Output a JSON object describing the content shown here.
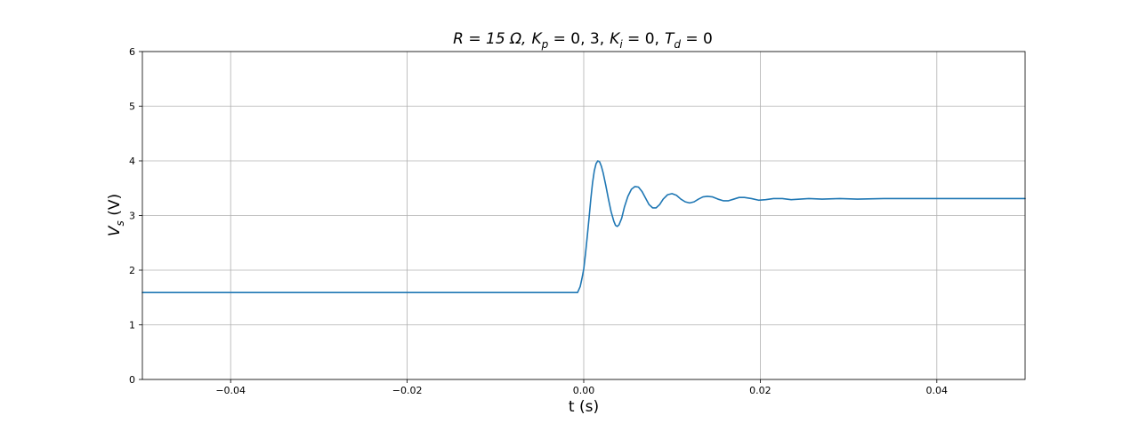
{
  "chart_data": {
    "type": "line",
    "title": "R = 15 Ω,  K_p = 0,3,  K_i = 0,  T_d = 0",
    "title_parts": {
      "r": "R = 15 Ω,",
      "kp_symbol": "K",
      "kp_sub": "p",
      "kp_value": " = 0, 3,",
      "ki_symbol": "K",
      "ki_sub": "i",
      "ki_value": " = 0,",
      "td_symbol": "T",
      "td_sub": "d",
      "td_value": " = 0"
    },
    "xlabel": "t (s)",
    "ylabel": "V_s (V)",
    "ylabel_parts": {
      "symbol": "V",
      "sub": "s",
      "unit": " (V)"
    },
    "xlim": [
      -0.05,
      0.05
    ],
    "ylim": [
      0,
      6
    ],
    "x_ticks": [
      -0.04,
      -0.02,
      0.0,
      0.02,
      0.04
    ],
    "x_tick_labels": [
      "−0.04",
      "−0.02",
      "0.00",
      "0.02",
      "0.04"
    ],
    "y_ticks": [
      0,
      1,
      2,
      3,
      4,
      5,
      6
    ],
    "y_tick_labels": [
      "0",
      "1",
      "2",
      "3",
      "4",
      "5",
      "6"
    ],
    "grid": true,
    "series": [
      {
        "color": "#1f77b4",
        "points": [
          [
            -0.05,
            1.59
          ],
          [
            -0.045,
            1.59
          ],
          [
            -0.04,
            1.59
          ],
          [
            -0.035,
            1.59
          ],
          [
            -0.03,
            1.59
          ],
          [
            -0.025,
            1.59
          ],
          [
            -0.02,
            1.59
          ],
          [
            -0.015,
            1.59
          ],
          [
            -0.01,
            1.59
          ],
          [
            -0.005,
            1.59
          ],
          [
            -0.0007,
            1.59
          ],
          [
            -0.0004,
            1.7
          ],
          [
            -0.0002,
            1.85
          ],
          [
            0.0,
            2.02
          ],
          [
            0.0002,
            2.3
          ],
          [
            0.0004,
            2.62
          ],
          [
            0.0006,
            2.95
          ],
          [
            0.0008,
            3.3
          ],
          [
            0.001,
            3.6
          ],
          [
            0.0012,
            3.82
          ],
          [
            0.0014,
            3.95
          ],
          [
            0.0016,
            4.0
          ],
          [
            0.0018,
            3.98
          ],
          [
            0.002,
            3.9
          ],
          [
            0.0022,
            3.78
          ],
          [
            0.0025,
            3.55
          ],
          [
            0.0028,
            3.3
          ],
          [
            0.0031,
            3.07
          ],
          [
            0.0034,
            2.9
          ],
          [
            0.0036,
            2.82
          ],
          [
            0.0038,
            2.8
          ],
          [
            0.004,
            2.83
          ],
          [
            0.0043,
            2.95
          ],
          [
            0.0046,
            3.15
          ],
          [
            0.005,
            3.35
          ],
          [
            0.0054,
            3.48
          ],
          [
            0.0058,
            3.53
          ],
          [
            0.0062,
            3.52
          ],
          [
            0.0066,
            3.44
          ],
          [
            0.007,
            3.32
          ],
          [
            0.0074,
            3.2
          ],
          [
            0.0078,
            3.14
          ],
          [
            0.0082,
            3.14
          ],
          [
            0.0086,
            3.2
          ],
          [
            0.009,
            3.3
          ],
          [
            0.0095,
            3.38
          ],
          [
            0.01,
            3.4
          ],
          [
            0.0105,
            3.37
          ],
          [
            0.011,
            3.3
          ],
          [
            0.0115,
            3.25
          ],
          [
            0.012,
            3.23
          ],
          [
            0.0125,
            3.25
          ],
          [
            0.013,
            3.3
          ],
          [
            0.0135,
            3.34
          ],
          [
            0.014,
            3.35
          ],
          [
            0.0146,
            3.34
          ],
          [
            0.0152,
            3.3
          ],
          [
            0.0158,
            3.27
          ],
          [
            0.0164,
            3.27
          ],
          [
            0.017,
            3.3
          ],
          [
            0.0176,
            3.33
          ],
          [
            0.0182,
            3.33
          ],
          [
            0.019,
            3.31
          ],
          [
            0.0198,
            3.28
          ],
          [
            0.0206,
            3.29
          ],
          [
            0.0215,
            3.31
          ],
          [
            0.0225,
            3.31
          ],
          [
            0.0235,
            3.29
          ],
          [
            0.0245,
            3.3
          ],
          [
            0.0255,
            3.31
          ],
          [
            0.027,
            3.3
          ],
          [
            0.029,
            3.31
          ],
          [
            0.031,
            3.3
          ],
          [
            0.034,
            3.31
          ],
          [
            0.038,
            3.31
          ],
          [
            0.042,
            3.31
          ],
          [
            0.046,
            3.31
          ],
          [
            0.05,
            3.31
          ]
        ]
      }
    ]
  }
}
